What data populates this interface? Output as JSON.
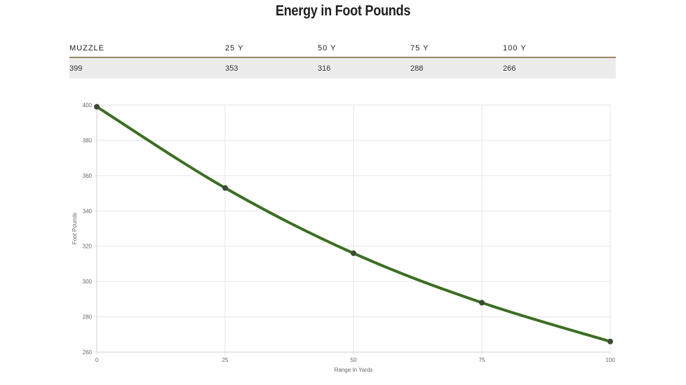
{
  "title": "Energy in Foot Pounds",
  "table": {
    "headers": [
      "MUZZLE",
      "25 Y",
      "50 Y",
      "75 Y",
      "100 Y"
    ],
    "values": [
      "399",
      "353",
      "316",
      "288",
      "266"
    ]
  },
  "colors": {
    "line": "#3b6e23",
    "point": "#3d4a35",
    "table_rule": "#9b8a66",
    "table_row_bg": "#ececec",
    "grid": "#e6e6e6"
  },
  "chart_data": {
    "type": "line",
    "title": "",
    "xlabel": "Range In Yards",
    "ylabel": "Foot Pounds",
    "x": [
      0,
      25,
      50,
      75,
      100
    ],
    "series": [
      {
        "values": [
          399,
          353,
          316,
          288,
          266
        ]
      }
    ],
    "xlim": [
      0,
      100
    ],
    "ylim": [
      260,
      400
    ],
    "xticks": [
      "0",
      "25",
      "50",
      "75",
      "100"
    ],
    "yticks": [
      "260",
      "280",
      "300",
      "320",
      "340",
      "360",
      "380",
      "400"
    ],
    "grid": true,
    "legend": "none"
  }
}
